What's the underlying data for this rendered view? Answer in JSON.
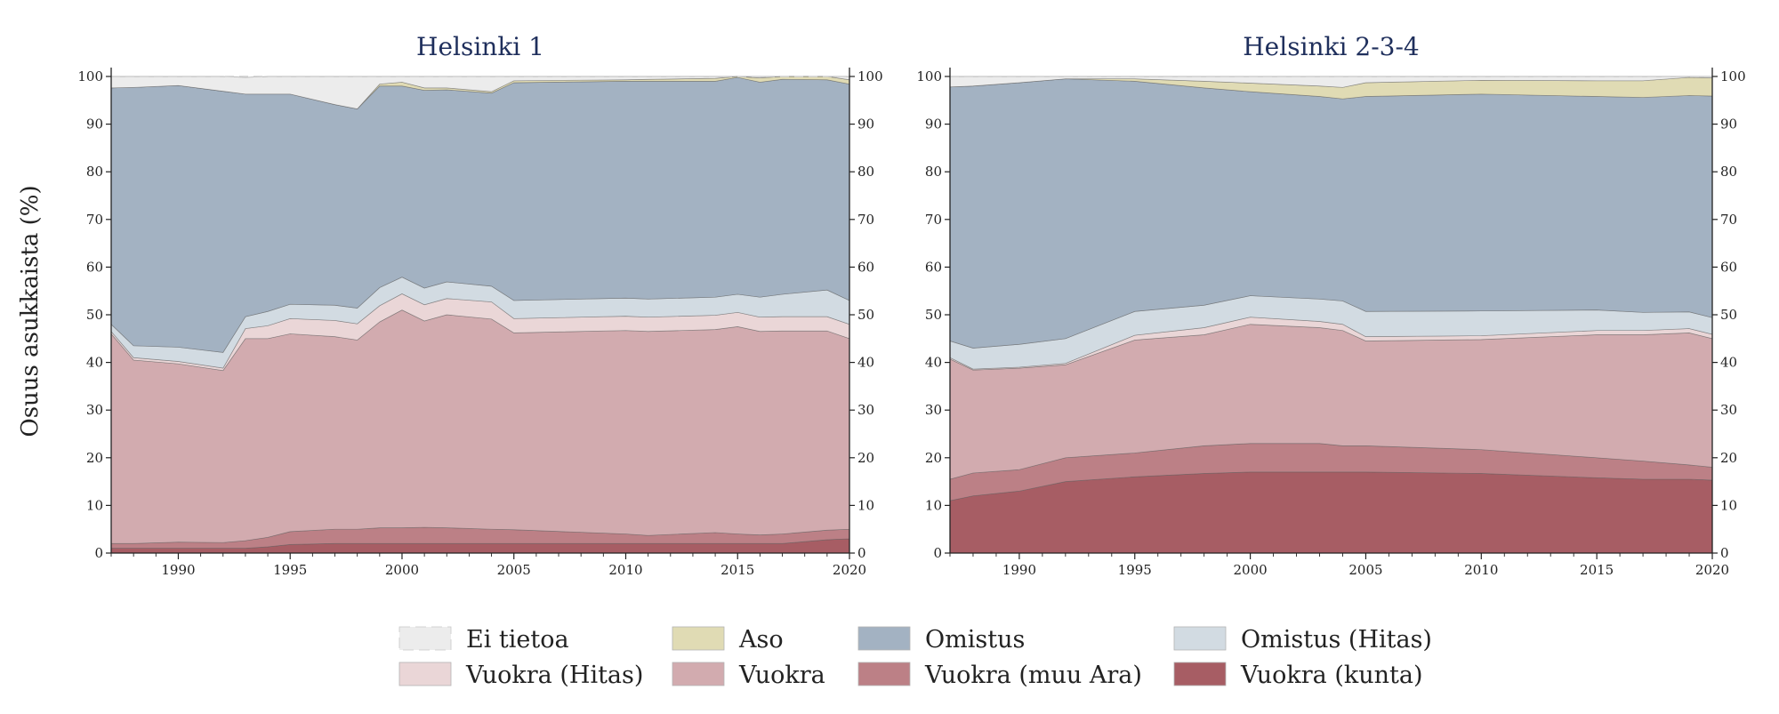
{
  "chart_data": {
    "type": "area",
    "stacked": true,
    "ylabel": "Osuus asukkaista (%)",
    "ylim": [
      0,
      100
    ],
    "y_ticks": [
      0,
      10,
      20,
      30,
      40,
      50,
      60,
      70,
      80,
      90,
      100
    ],
    "x_ticks": [
      1990,
      1995,
      2000,
      2005,
      2010,
      2015,
      2020
    ],
    "xlim": [
      1987,
      2020
    ],
    "categories_order": [
      "Vuokra (kunta)",
      "Vuokra (muu Ara)",
      "Vuokra",
      "Vuokra (Hitas)",
      "Omistus (Hitas)",
      "Omistus",
      "Aso",
      "Ei tietoa"
    ],
    "colors": {
      "Ei tietoa": "#ececec",
      "Aso": "#e0dbb4",
      "Omistus": "#a3b2c2",
      "Omistus (Hitas)": "#d2dbe2",
      "Vuokra (Hitas)": "#ead6d7",
      "Vuokra": "#d2abaf",
      "Vuokra (muu Ara)": "#bc8086",
      "Vuokra (kunta)": "#a75d64"
    },
    "legend": {
      "placement": "bottom-center",
      "items": [
        "Ei tietoa",
        "Aso",
        "Omistus",
        "Omistus (Hitas)",
        "Vuokra (Hitas)",
        "Vuokra",
        "Vuokra (muu Ara)",
        "Vuokra (kunta)"
      ]
    },
    "panels": [
      {
        "title": "Helsinki 1",
        "x": [
          1987,
          1988,
          1990,
          1992,
          1993,
          1994,
          1995,
          1997,
          1998,
          1999,
          2000,
          2001,
          2002,
          2004,
          2005,
          2010,
          2011,
          2014,
          2015,
          2016,
          2017,
          2019,
          2020
        ],
        "series": [
          {
            "name": "Vuokra (kunta)",
            "values": [
              1.0,
              1.0,
              1.0,
              1.0,
              1.0,
              1.3,
              1.8,
              2.0,
              2.0,
              2.0,
              2.0,
              2.0,
              2.0,
              2.0,
              2.0,
              2.0,
              2.0,
              2.0,
              2.0,
              2.0,
              2.0,
              2.8,
              3.0
            ]
          },
          {
            "name": "Vuokra (muu Ara)",
            "values": [
              1.0,
              1.0,
              1.3,
              1.2,
              1.6,
              2.0,
              2.7,
              3.0,
              3.0,
              3.3,
              3.3,
              3.4,
              3.3,
              3.0,
              2.9,
              2.0,
              1.7,
              2.3,
              2.0,
              1.8,
              2.0,
              2.0,
              2.0
            ]
          },
          {
            "name": "Vuokra",
            "values": [
              44.0,
              38.5,
              37.4,
              36.1,
              42.4,
              41.7,
              41.5,
              40.4,
              39.7,
              43.2,
              45.7,
              43.3,
              44.7,
              44.1,
              41.3,
              42.7,
              42.8,
              42.6,
              43.5,
              42.7,
              42.6,
              41.8,
              40.0
            ]
          },
          {
            "name": "Vuokra (Hitas)",
            "values": [
              0.5,
              0.5,
              0.5,
              0.5,
              2.1,
              2.7,
              3.2,
              3.4,
              3.4,
              3.4,
              3.4,
              3.4,
              3.4,
              3.6,
              3.0,
              3.0,
              3.0,
              3.0,
              3.0,
              3.0,
              3.0,
              3.0,
              3.0
            ]
          },
          {
            "name": "Omistus (Hitas)",
            "values": [
              1.5,
              2.5,
              3.0,
              3.3,
              2.5,
              3.0,
              3.0,
              3.2,
              3.3,
              3.8,
              3.5,
              3.5,
              3.5,
              3.3,
              3.8,
              3.8,
              3.8,
              3.8,
              3.8,
              4.2,
              4.7,
              5.6,
              5.0
            ]
          },
          {
            "name": "Omistus",
            "values": [
              49.6,
              54.2,
              54.9,
              54.8,
              46.7,
              45.6,
              44.1,
              42.1,
              41.8,
              42.3,
              40.1,
              41.5,
              40.3,
              40.5,
              45.7,
              45.5,
              45.7,
              45.3,
              45.5,
              45.1,
              45.1,
              44.1,
              45.4
            ]
          },
          {
            "name": "Aso",
            "values": [
              0.0,
              0.0,
              0.0,
              0.0,
              0.0,
              0.0,
              0.0,
              0.0,
              0.0,
              0.4,
              0.8,
              0.5,
              0.4,
              0.3,
              0.4,
              0.3,
              0.4,
              0.6,
              0.7,
              0.9,
              0.9,
              0.9,
              0.9
            ]
          },
          {
            "name": "Ei tietoa",
            "values": [
              2.4,
              2.3,
              1.9,
              3.1,
              3.5,
              3.7,
              3.7,
              5.9,
              6.8,
              1.6,
              1.2,
              2.4,
              2.4,
              3.2,
              0.9,
              0.7,
              0.6,
              0.4,
              0.5,
              0.3,
              0.7,
              0.8,
              0.7
            ]
          }
        ]
      },
      {
        "title": "Helsinki 2-3-4",
        "x": [
          1987,
          1988,
          1990,
          1992,
          1995,
          1998,
          2000,
          2003,
          2004,
          2005,
          2010,
          2015,
          2017,
          2019,
          2020
        ],
        "series": [
          {
            "name": "Vuokra (kunta)",
            "values": [
              11.0,
              12.0,
              13.0,
              15.0,
              16.0,
              16.7,
              17.0,
              17.0,
              17.0,
              17.0,
              16.7,
              15.8,
              15.5,
              15.5,
              15.3
            ]
          },
          {
            "name": "Vuokra (muu Ara)",
            "values": [
              4.5,
              4.8,
              4.5,
              5.0,
              5.0,
              5.8,
              6.0,
              6.0,
              5.5,
              5.5,
              5.0,
              4.2,
              3.8,
              3.0,
              2.7
            ]
          },
          {
            "name": "Vuokra",
            "values": [
              25.2,
              21.6,
              21.3,
              19.5,
              23.7,
              23.3,
              25.0,
              24.3,
              24.2,
              22.0,
              23.1,
              25.8,
              26.5,
              27.7,
              27.0
            ]
          },
          {
            "name": "Vuokra (Hitas)",
            "values": [
              0.3,
              0.2,
              0.2,
              0.3,
              1.0,
              1.5,
              1.5,
              1.3,
              1.3,
              0.9,
              0.8,
              0.9,
              0.9,
              0.9,
              0.9
            ]
          },
          {
            "name": "Omistus (Hitas)",
            "values": [
              3.5,
              4.4,
              4.8,
              5.2,
              5.0,
              4.7,
              4.5,
              4.7,
              4.9,
              5.3,
              5.2,
              4.3,
              3.8,
              3.5,
              3.5
            ]
          },
          {
            "name": "Omistus",
            "values": [
              53.3,
              55.0,
              54.9,
              54.5,
              48.3,
              45.6,
              42.8,
              42.5,
              42.4,
              45.1,
              45.5,
              44.8,
              45.1,
              45.4,
              46.5
            ]
          },
          {
            "name": "Aso",
            "values": [
              0.0,
              0.0,
              0.0,
              0.0,
              0.5,
              1.4,
              1.8,
              2.2,
              2.4,
              2.9,
              2.9,
              3.3,
              3.5,
              3.8,
              3.8
            ]
          },
          {
            "name": "Ei tietoa",
            "values": [
              2.2,
              2.0,
              1.3,
              0.5,
              0.5,
              1.0,
              1.4,
              2.0,
              2.3,
              1.3,
              0.8,
              0.9,
              0.9,
              0.2,
              0.3
            ]
          }
        ]
      }
    ]
  }
}
